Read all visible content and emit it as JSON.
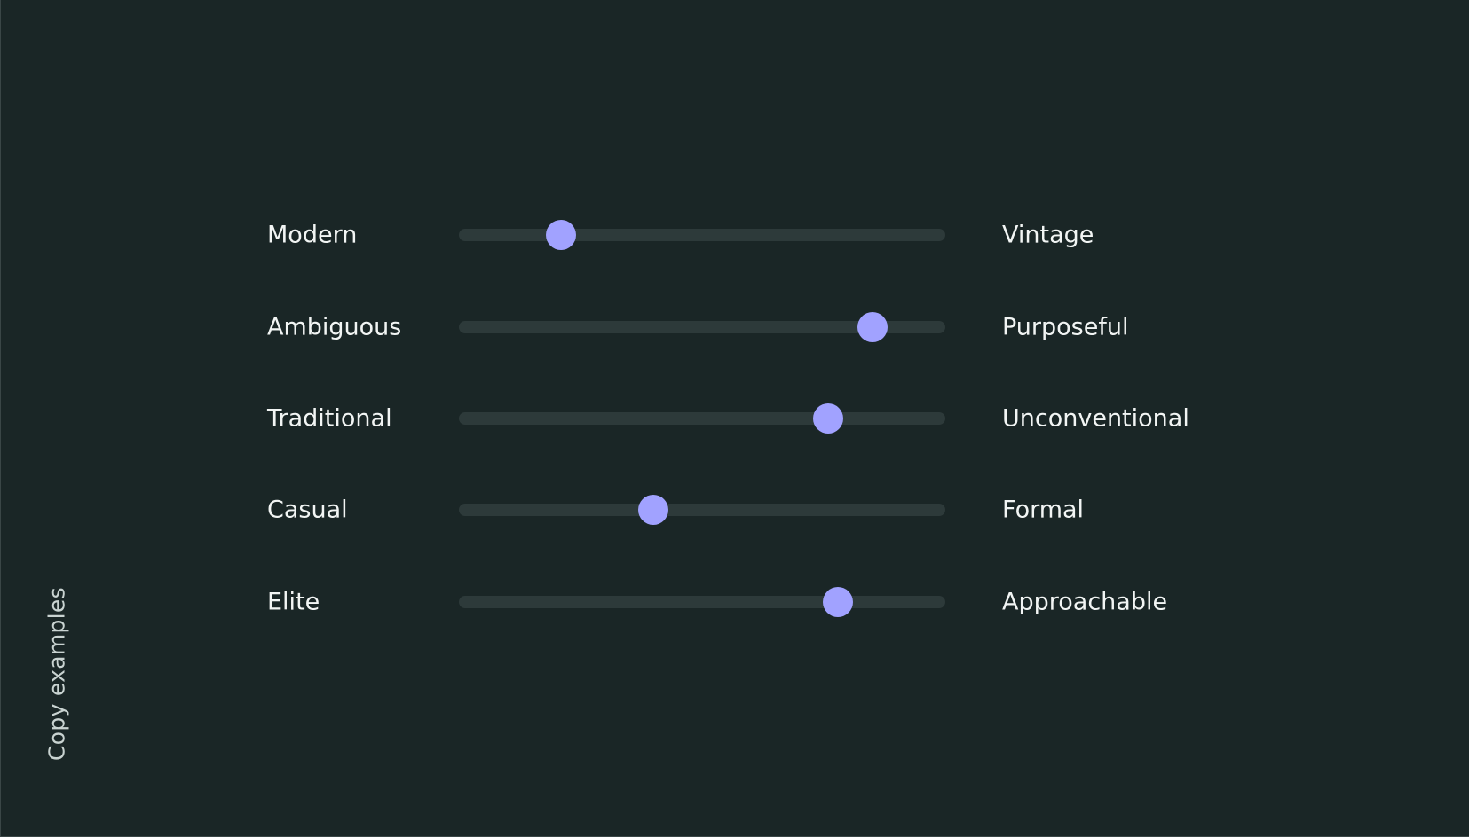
{
  "side_label": "Copy examples",
  "accent_color": "#a1a2ff",
  "sliders": [
    {
      "left": "Modern",
      "right": "Vintage",
      "value": 0.21
    },
    {
      "left": "Ambiguous",
      "right": "Purposeful",
      "value": 0.85
    },
    {
      "left": "Traditional",
      "right": "Unconventional",
      "value": 0.76
    },
    {
      "left": "Casual",
      "right": "Formal",
      "value": 0.4
    },
    {
      "left": "Elite",
      "right": "Approachable",
      "value": 0.78
    }
  ]
}
